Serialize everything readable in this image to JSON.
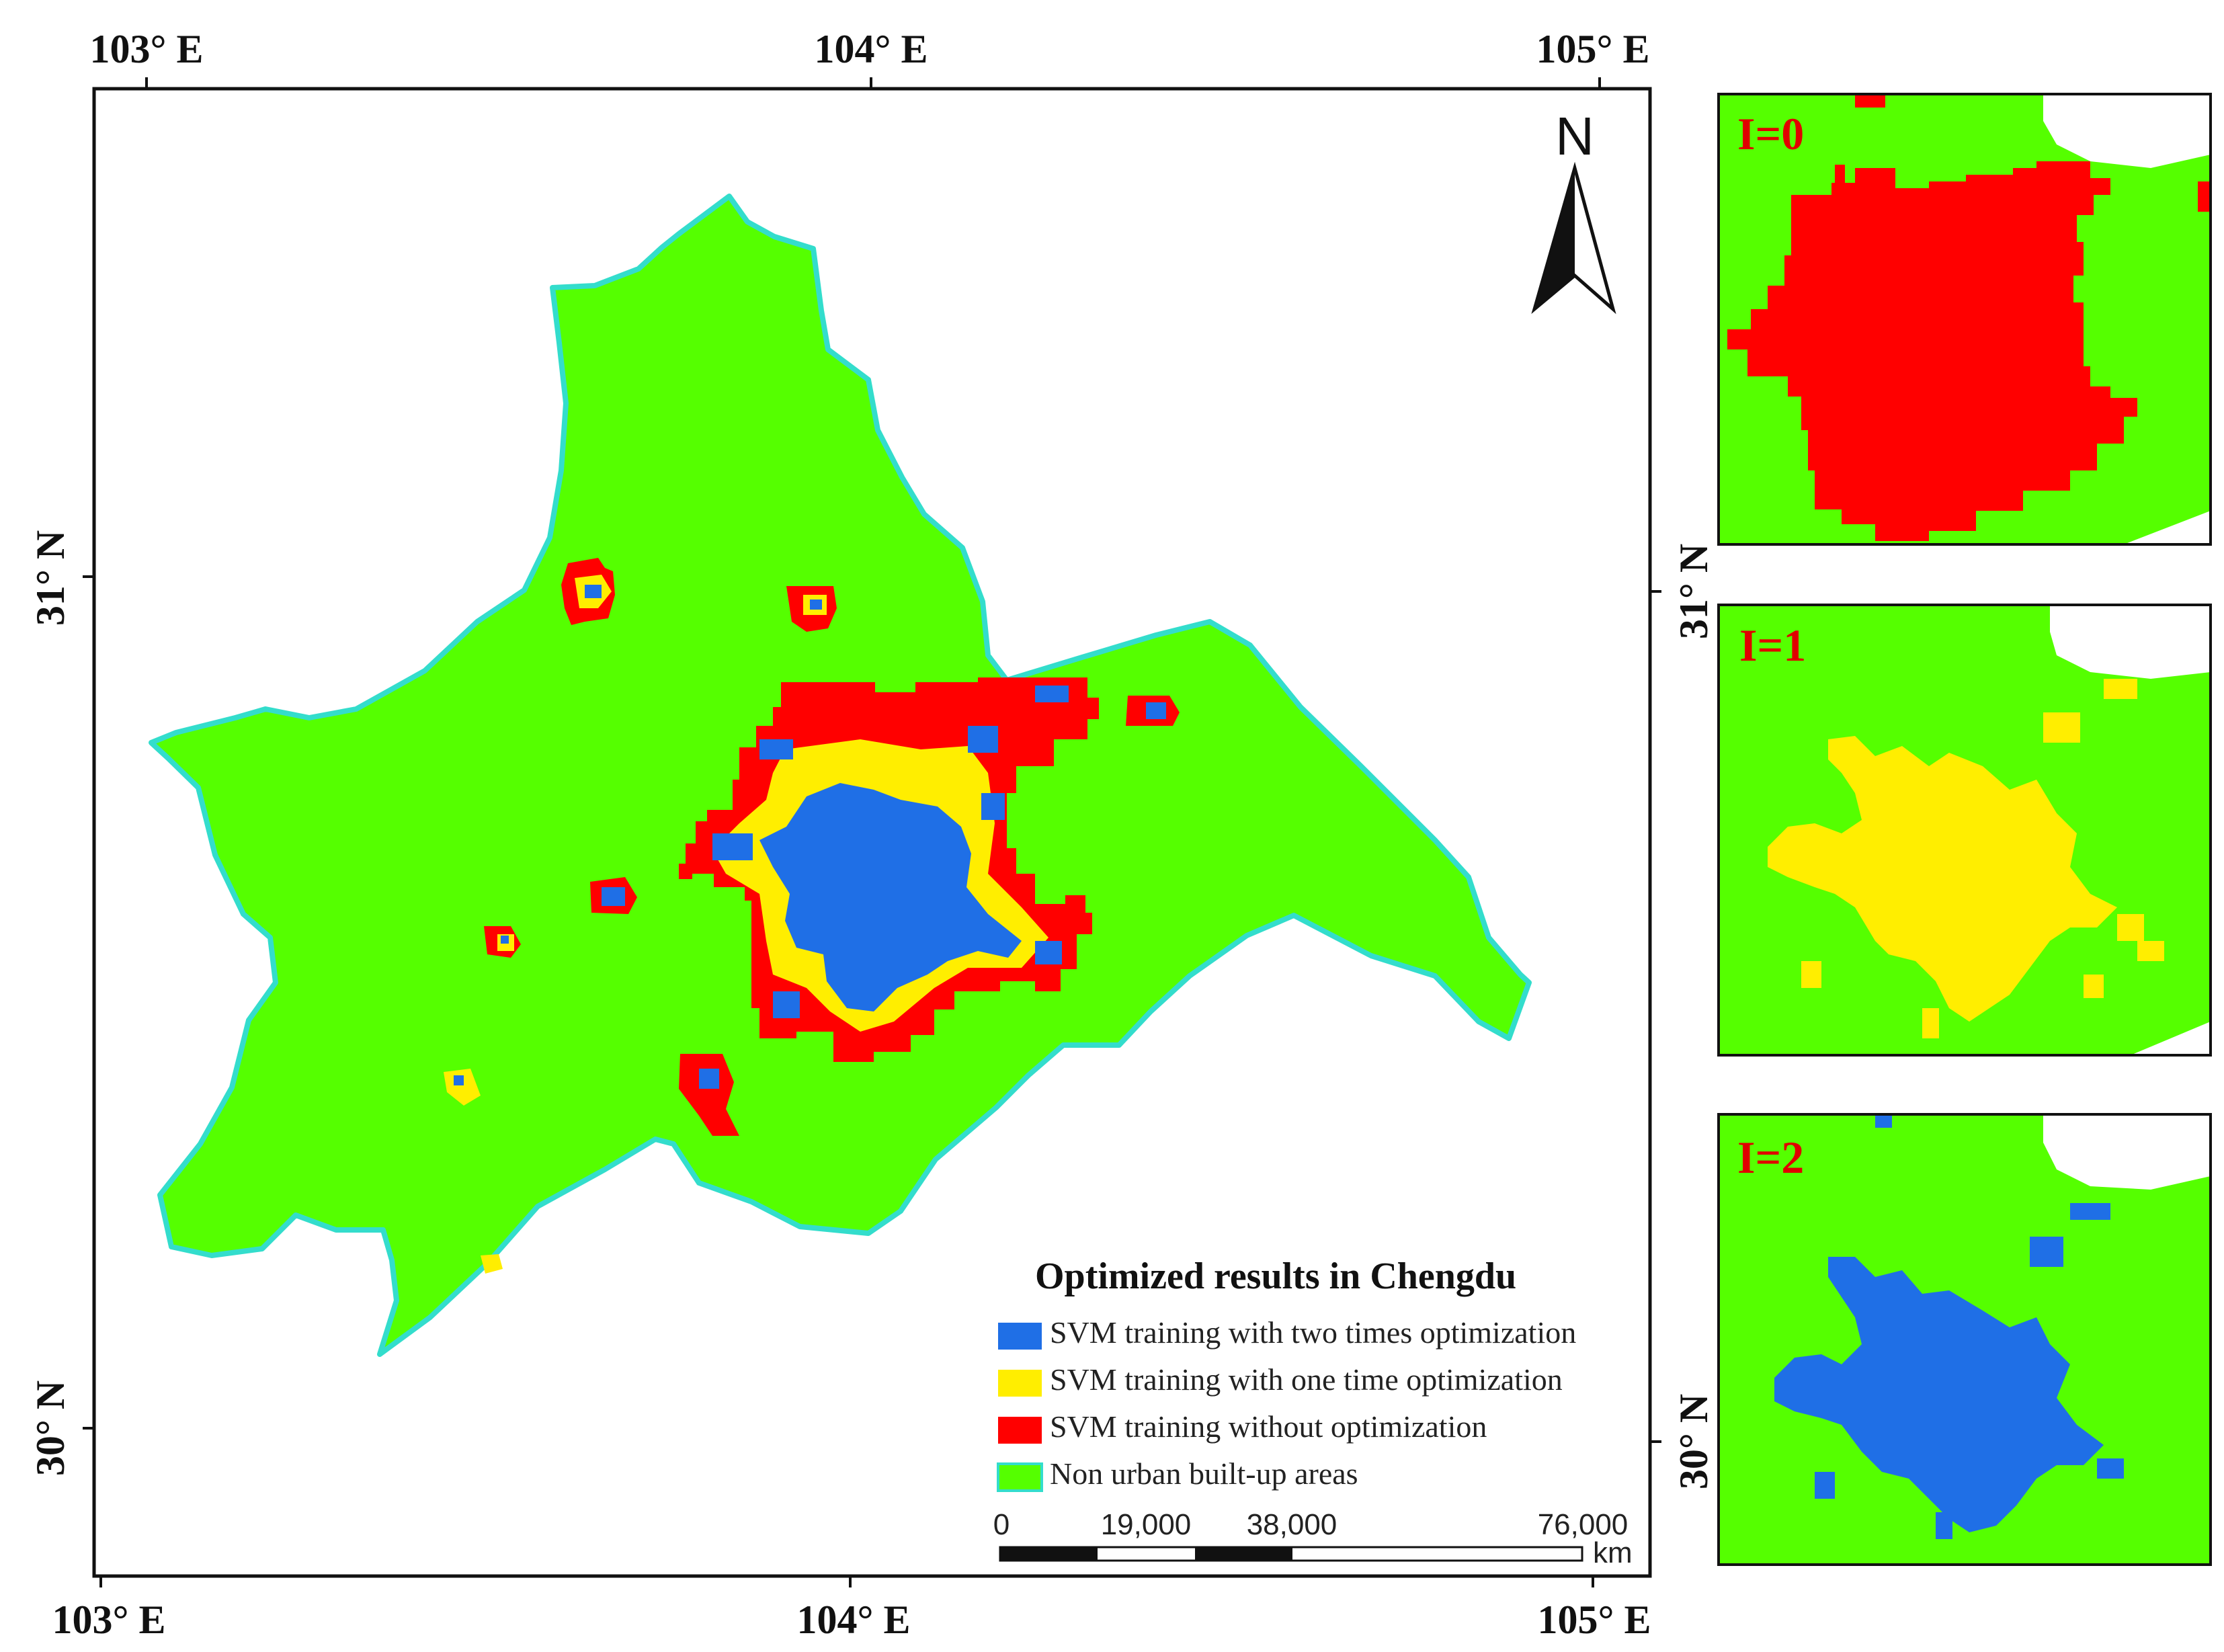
{
  "map": {
    "legend_title": "Optimized results in Chengdu",
    "legend": [
      {
        "label": "SVM training with two times optimization",
        "color": "#1f6fe6"
      },
      {
        "label": "SVM training with one time optimization",
        "color": "#ffee00"
      },
      {
        "label": "SVM training without optimization",
        "color": "#ff0000"
      },
      {
        "label": "Non urban built-up areas",
        "color": "#55ff00"
      }
    ],
    "north_label": "N",
    "top_ticks": [
      "103° E",
      "104° E",
      "105° E"
    ],
    "bottom_ticks": [
      "103° E",
      "104° E",
      "105° E"
    ],
    "left_ticks": [
      "31° N",
      "30° N"
    ],
    "right_ticks": [
      "31° N",
      "30° N"
    ],
    "scale": {
      "labels": [
        "0",
        "19,000",
        "38,000",
        "76,000"
      ],
      "unit": "km"
    },
    "colors": {
      "land": "#55ff00",
      "outline": "#33ddcc",
      "red": "#ff0000",
      "yellow": "#ffee00",
      "blue": "#1f6fe6"
    }
  },
  "panels": [
    {
      "label": "I=0",
      "color": "#ff0000"
    },
    {
      "label": "I=1",
      "color": "#ffee00"
    },
    {
      "label": "I=2",
      "color": "#1f6fe6"
    }
  ]
}
